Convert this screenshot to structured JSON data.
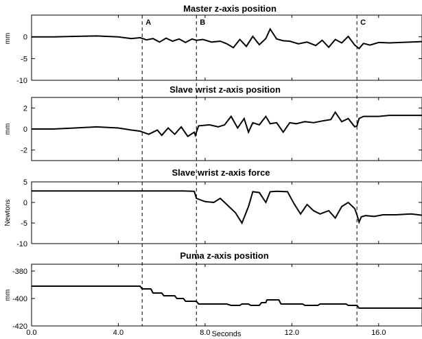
{
  "chart_data": [
    {
      "type": "line",
      "title": "Master z-axis position",
      "ylabel": "mm",
      "xlabel": "",
      "xlim": [
        0,
        18
      ],
      "ylim": [
        -10,
        5
      ],
      "yticks": [
        "0",
        "-5",
        "-10"
      ],
      "yticks_values": [
        0,
        -5,
        -10
      ],
      "grid": false,
      "series": [
        {
          "x": [
            0,
            1,
            2,
            3,
            4,
            4.6,
            5.0,
            5.3,
            5.6,
            5.9,
            6.2,
            6.5,
            6.8,
            7.1,
            7.4,
            7.6,
            7.9,
            8.3,
            8.7,
            9.0,
            9.3,
            9.6,
            9.9,
            10.2,
            10.5,
            10.8,
            11.0,
            11.3,
            11.6,
            11.9,
            12.3,
            12.7,
            13.1,
            13.4,
            13.7,
            14.0,
            14.3,
            14.6,
            14.9,
            15.1,
            15.3,
            15.6,
            16.0,
            16.5,
            17.0,
            17.5,
            18.0
          ],
          "y": [
            0.0,
            0.0,
            0.1,
            0.2,
            0.0,
            -0.4,
            -0.2,
            -0.7,
            -0.4,
            -1.2,
            -0.3,
            -1.0,
            -0.5,
            -1.3,
            -0.5,
            -0.8,
            -0.6,
            -1.2,
            -1.0,
            -1.6,
            -2.5,
            -0.6,
            -2.2,
            0.1,
            -1.8,
            -0.4,
            1.8,
            -0.5,
            -0.9,
            -1.0,
            -1.6,
            -1.2,
            -2.0,
            -0.8,
            -2.4,
            -0.6,
            -1.4,
            0.1,
            -1.9,
            -2.7,
            -1.5,
            -1.9,
            -1.3,
            -1.4,
            -1.3,
            -1.2,
            -1.1
          ]
        }
      ]
    },
    {
      "type": "line",
      "title": "Slave wrist z-axis position",
      "ylabel": "mm",
      "xlabel": "",
      "xlim": [
        0,
        18
      ],
      "ylim": [
        -3,
        3
      ],
      "yticks": [
        "2",
        "0",
        "-2"
      ],
      "yticks_values": [
        2,
        0,
        -2
      ],
      "grid": false,
      "series": [
        {
          "x": [
            0,
            1,
            2,
            3,
            4,
            4.6,
            5.0,
            5.4,
            5.8,
            6.0,
            6.3,
            6.6,
            6.9,
            7.2,
            7.5,
            7.55,
            7.7,
            8.2,
            8.6,
            8.9,
            9.2,
            9.5,
            9.8,
            10.0,
            10.2,
            10.5,
            10.8,
            11.0,
            11.3,
            11.6,
            11.9,
            12.2,
            12.6,
            13.0,
            13.5,
            13.8,
            14.0,
            14.3,
            14.6,
            14.9,
            15.0,
            15.1,
            15.3,
            15.6,
            16.0,
            16.5,
            17.0,
            18.0
          ],
          "y": [
            0.0,
            0.0,
            0.1,
            0.2,
            0.1,
            -0.1,
            -0.2,
            -0.5,
            -0.1,
            -0.6,
            0.1,
            -0.5,
            0.2,
            -0.7,
            -0.3,
            -0.6,
            0.3,
            0.4,
            0.2,
            0.4,
            1.2,
            0.1,
            1.0,
            -0.3,
            0.6,
            0.4,
            1.2,
            0.5,
            0.6,
            -0.3,
            0.6,
            0.5,
            0.7,
            0.6,
            0.8,
            0.9,
            1.6,
            0.7,
            1.0,
            0.2,
            0.3,
            1.0,
            1.2,
            1.2,
            1.2,
            1.3,
            1.3,
            1.3
          ]
        }
      ]
    },
    {
      "type": "line",
      "title": "Slave wrist z-axis force",
      "ylabel": "Newtons",
      "xlabel": "",
      "xlim": [
        0,
        18
      ],
      "ylim": [
        -10,
        5
      ],
      "yticks": [
        "5",
        "0",
        "-5",
        "-10"
      ],
      "yticks_values": [
        5,
        0,
        -5,
        -10
      ],
      "grid": false,
      "series": [
        {
          "x": [
            0,
            1,
            2,
            3,
            4,
            5,
            6,
            7,
            7.5,
            7.6,
            8.0,
            8.4,
            8.7,
            9.0,
            9.4,
            9.7,
            10.0,
            10.2,
            10.5,
            10.8,
            11.0,
            11.3,
            11.8,
            12.1,
            12.4,
            12.7,
            13.0,
            13.3,
            13.7,
            14.0,
            14.3,
            14.6,
            14.9,
            15.0,
            15.1,
            15.2,
            15.4,
            15.8,
            16.2,
            16.8,
            17.5,
            18.0
          ],
          "y": [
            2.8,
            2.8,
            2.8,
            2.8,
            2.8,
            2.8,
            2.8,
            2.8,
            2.7,
            1.0,
            0.2,
            0.0,
            1.0,
            -0.5,
            -2.5,
            -5.0,
            -1.0,
            2.6,
            2.4,
            0.0,
            2.6,
            2.7,
            2.6,
            -0.3,
            -2.8,
            -0.5,
            -2.0,
            -2.8,
            -2.0,
            -3.8,
            -1.0,
            0.0,
            -1.5,
            -3.0,
            -4.8,
            -3.5,
            -3.2,
            -3.4,
            -3.0,
            -3.0,
            -2.8,
            -3.1
          ]
        }
      ]
    },
    {
      "type": "line",
      "title": "Puma z-axis position",
      "ylabel": "mm",
      "xlabel": "Seconds",
      "xlim": [
        0,
        18
      ],
      "ylim": [
        -420,
        -375
      ],
      "yticks": [
        "-380",
        "-400",
        "-420"
      ],
      "yticks_values": [
        -380,
        -400,
        -420
      ],
      "xticks": [
        "0.0",
        "4.0",
        "8.0",
        "12.0",
        "16.0"
      ],
      "xticks_values": [
        0,
        4,
        8,
        12,
        16
      ],
      "grid": false,
      "series": [
        {
          "x": [
            0,
            5.0,
            5.1,
            5.5,
            5.6,
            6.0,
            6.1,
            6.6,
            6.7,
            7.0,
            7.1,
            7.6,
            7.7,
            9.0,
            9.2,
            9.6,
            9.7,
            10.0,
            10.1,
            10.5,
            10.6,
            10.8,
            10.85,
            11.4,
            11.5,
            12.5,
            12.6,
            13.2,
            13.3,
            14.5,
            14.6,
            15.0,
            15.1,
            18.0
          ],
          "y": [
            -391,
            -391,
            -393,
            -393,
            -396,
            -396,
            -398,
            -398,
            -400,
            -400,
            -402,
            -402,
            -404,
            -404,
            -405,
            -405,
            -404,
            -404,
            -405,
            -405,
            -403,
            -403,
            -401,
            -401,
            -404,
            -404,
            -405,
            -405,
            -404,
            -404,
            -405,
            -405,
            -407,
            -407
          ]
        }
      ]
    }
  ],
  "markers": [
    {
      "label": "A",
      "x": 5.1
    },
    {
      "label": "B",
      "x": 7.6
    },
    {
      "label": "C",
      "x": 15.0
    }
  ],
  "colors": {
    "line": "#000000",
    "axes": "#000000",
    "background": "#ffffff"
  }
}
